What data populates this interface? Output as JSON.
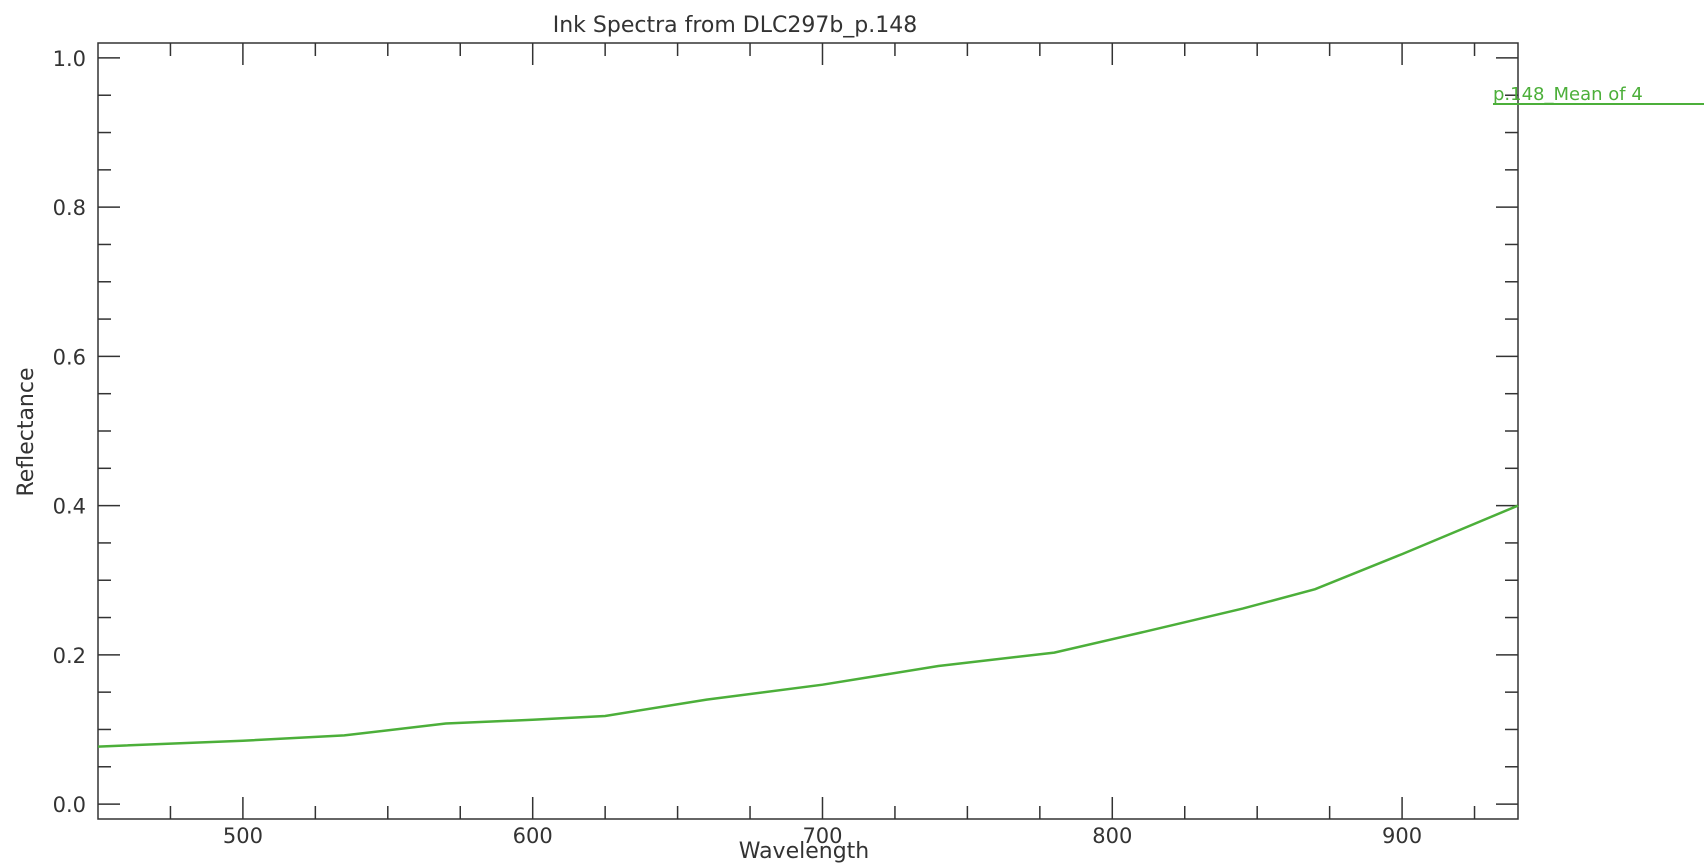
{
  "chart_data": {
    "type": "line",
    "title": "Ink Spectra from DLC297b_p.148",
    "xlabel": "Wavelength",
    "ylabel": "Reflectance",
    "xlim": [
      450,
      940
    ],
    "ylim": [
      -0.02,
      1.02
    ],
    "x_ticks": [
      500,
      600,
      700,
      800,
      900
    ],
    "x_tick_labels": [
      "500",
      "600",
      "700",
      "800",
      "900"
    ],
    "y_ticks": [
      0.0,
      0.2,
      0.4,
      0.6,
      0.8,
      1.0
    ],
    "y_tick_labels": [
      "0.0",
      "0.2",
      "0.4",
      "0.6",
      "0.8",
      "1.0"
    ],
    "grid": false,
    "legend_position": "right",
    "series": [
      {
        "name": "p.148_Mean of 4",
        "color": "#4caf3a",
        "x": [
          450,
          500,
          535,
          570,
          600,
          625,
          660,
          700,
          740,
          780,
          810,
          845,
          870,
          900,
          940
        ],
        "y": [
          0.077,
          0.085,
          0.092,
          0.108,
          0.113,
          0.118,
          0.14,
          0.16,
          0.185,
          0.203,
          0.23,
          0.262,
          0.288,
          0.335,
          0.4
        ]
      }
    ]
  }
}
